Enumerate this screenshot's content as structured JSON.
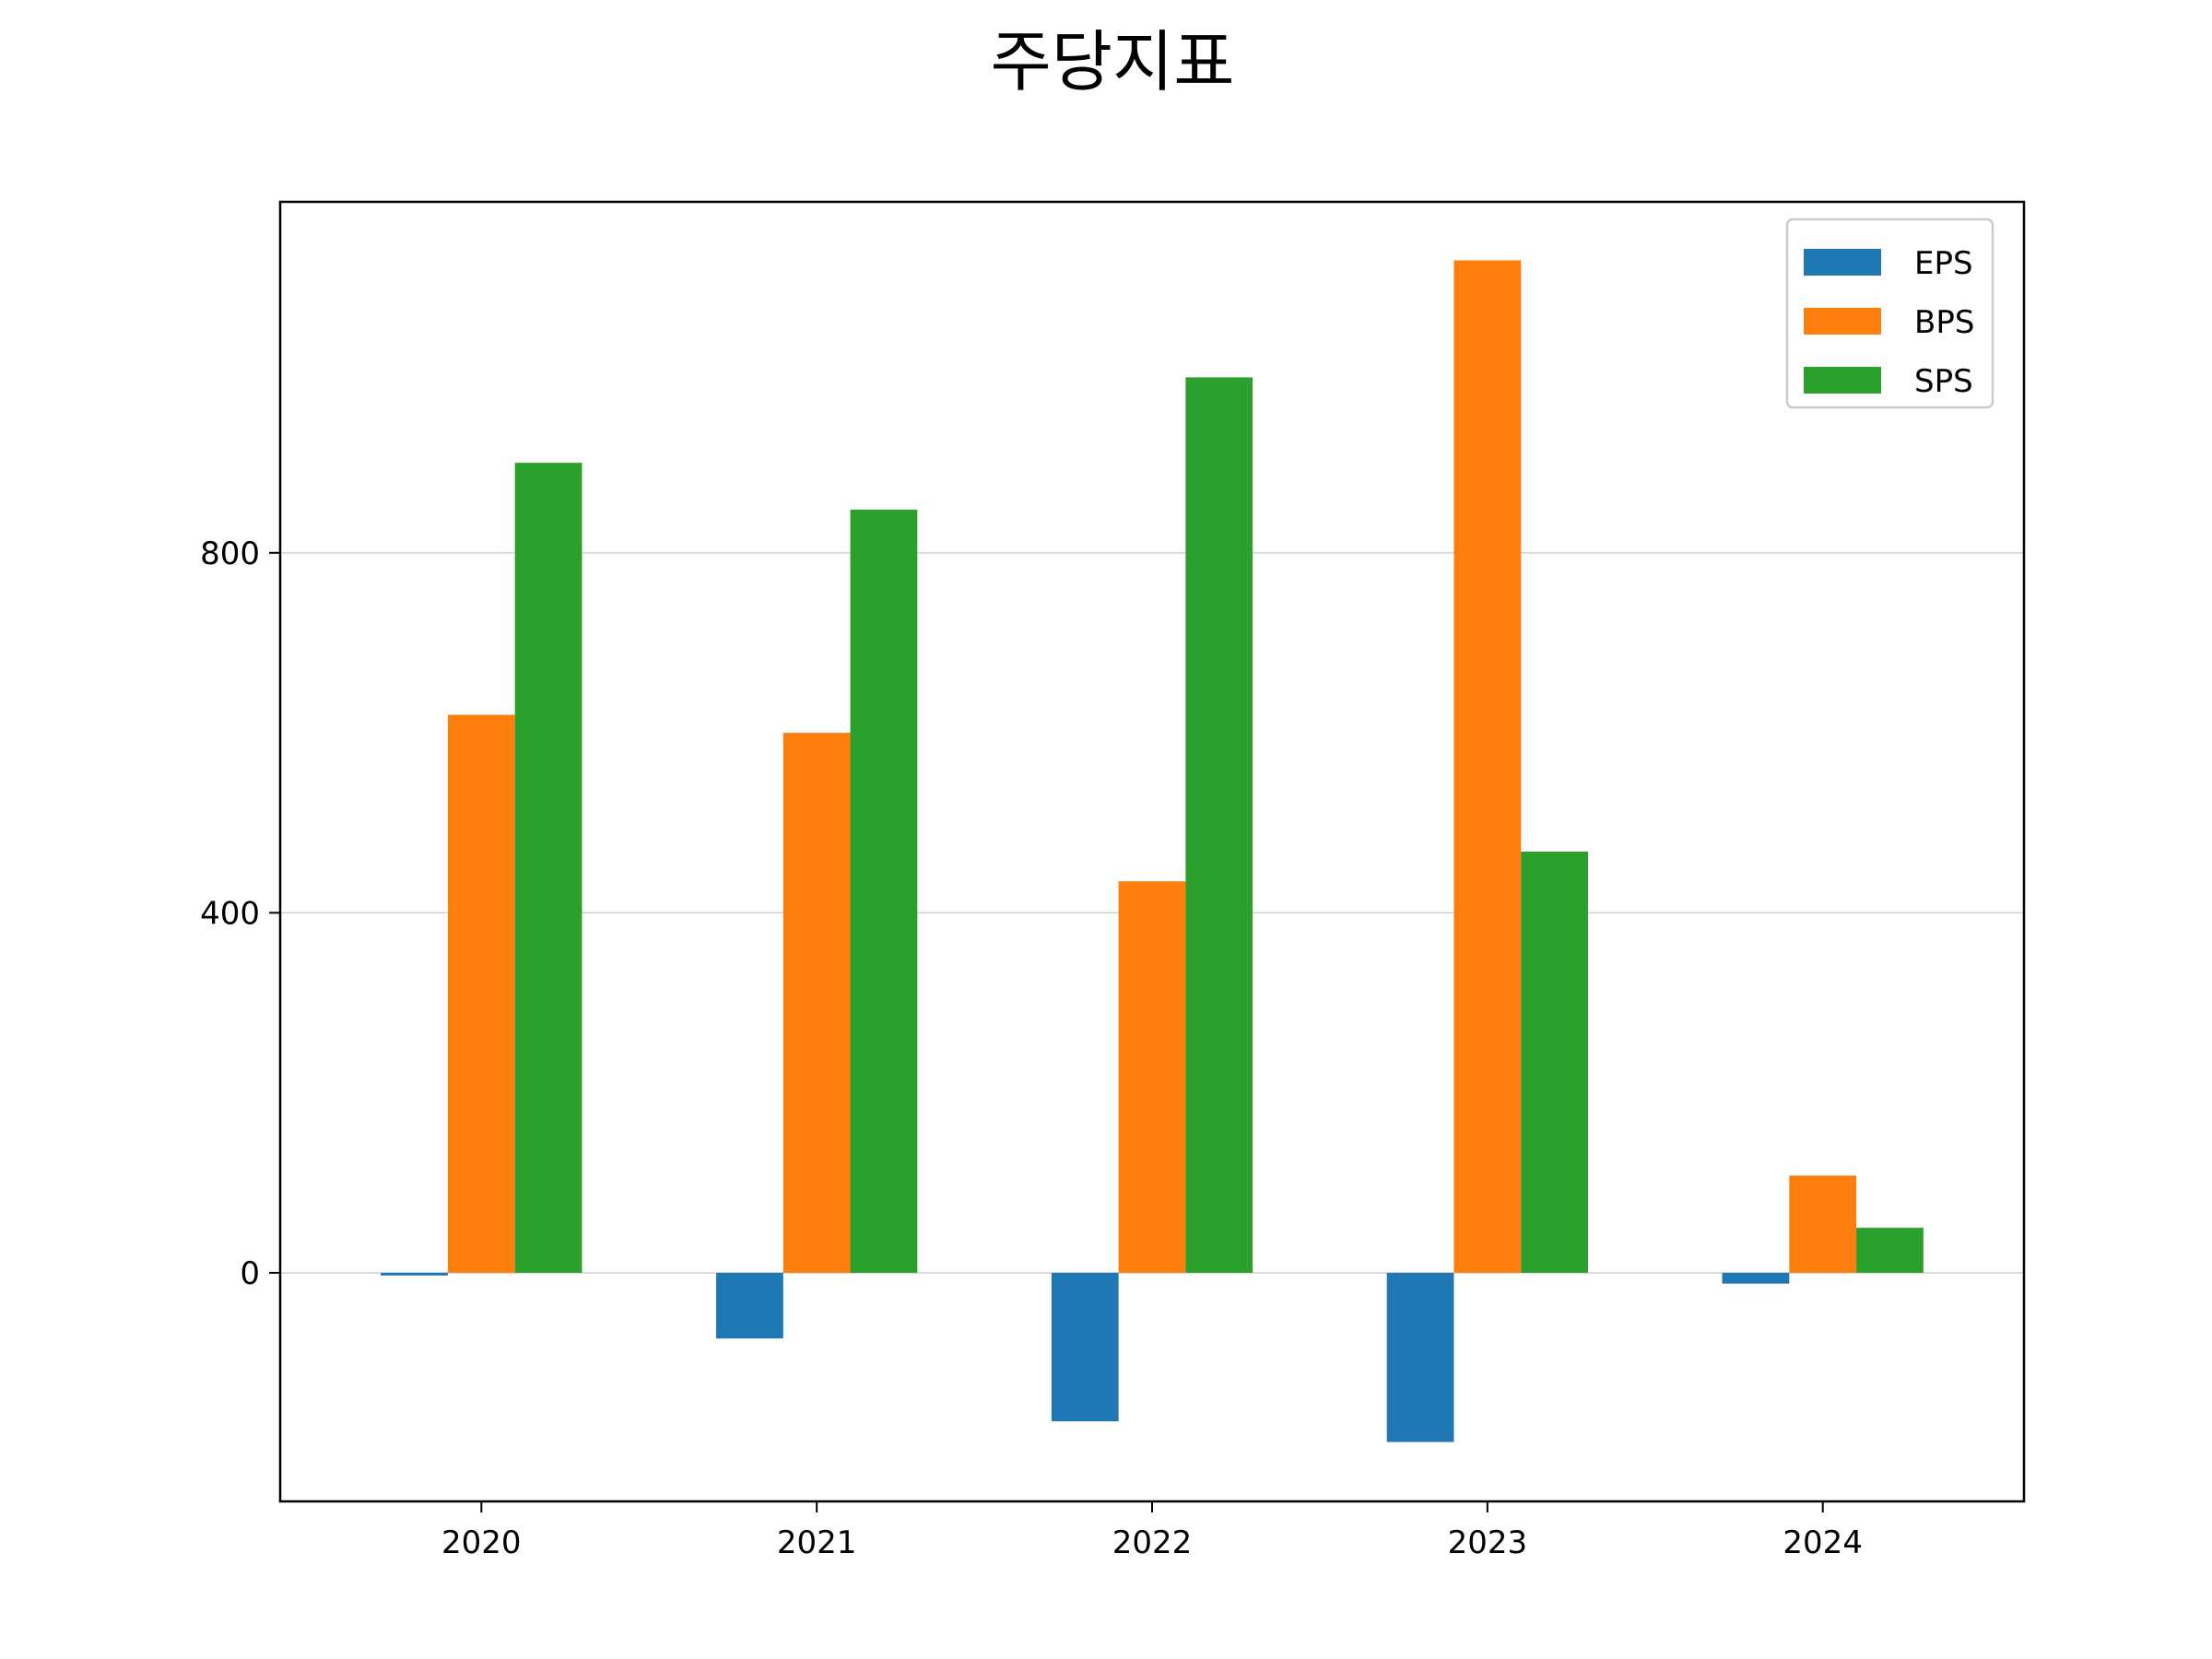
{
  "chart_data": {
    "type": "bar",
    "title": "주당지표",
    "xlabel": "",
    "ylabel": "",
    "categories": [
      "2020",
      "2021",
      "2022",
      "2023",
      "2024"
    ],
    "series": [
      {
        "name": "EPS",
        "values": [
          -3,
          -73,
          -165,
          -188,
          -12
        ]
      },
      {
        "name": "BPS",
        "values": [
          620,
          600,
          435,
          1125,
          108
        ]
      },
      {
        "name": "SPS",
        "values": [
          900,
          848,
          995,
          468,
          50
        ]
      }
    ],
    "colors": [
      "#1f77b4",
      "#ff7f0e",
      "#2ca02c"
    ],
    "ylim": [
      -254,
      1190
    ],
    "yticks": [
      0,
      400,
      800
    ],
    "ytick_labels": [
      "0",
      "400",
      "800"
    ],
    "grid": "y",
    "legend_position": "top-right"
  }
}
